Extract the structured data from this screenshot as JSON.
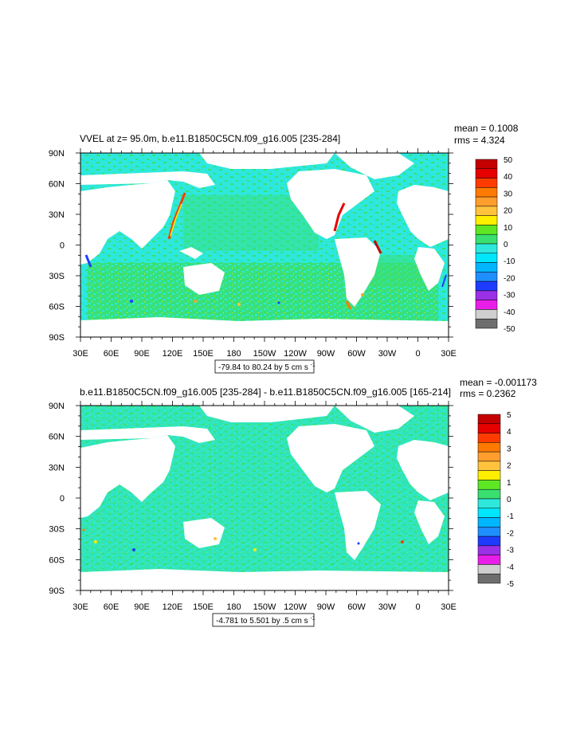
{
  "colors": {
    "ocean_base": "#2ee8dc",
    "land": "#ffffff",
    "frame": "#000000",
    "scale": [
      "#6e6e6e",
      "#cfcfcf",
      "#e81ee8",
      "#9b30e6",
      "#1e3cff",
      "#1f8fff",
      "#00b6ff",
      "#00e6ff",
      "#2ee8dc",
      "#39e06f",
      "#5ee623",
      "#ffee00",
      "#ffc33d",
      "#ff9e2d",
      "#ff7a00",
      "#ff3b00",
      "#e60000",
      "#c40000"
    ]
  },
  "chart_data": [
    {
      "type": "heatmap",
      "title": "VVEL at z=  95.0m, b.e11.B1850C5CN.f09_g16.005 [235-284]",
      "stats": [
        "mean = 0.1008",
        "rms = 4.324"
      ],
      "x_tick_labels": [
        "30E",
        "60E",
        "90E",
        "120E",
        "150E",
        "180",
        "150W",
        "120W",
        "90W",
        "60W",
        "30W",
        "0",
        "30E"
      ],
      "y_tick_labels": [
        "90N",
        "60N",
        "30N",
        "0",
        "30S",
        "60S",
        "90S"
      ],
      "x_range": [
        30,
        390
      ],
      "y_range": [
        -90,
        90
      ],
      "colorbar_labels": [
        "50",
        "40",
        "30",
        "20",
        "10",
        "0",
        "-10",
        "-20",
        "-30",
        "-40",
        "-50"
      ],
      "colorbar_levels": 18,
      "range_label": "-79.84 to 80.24 by 5 cm s",
      "range_unit_exp": "-1"
    },
    {
      "type": "heatmap",
      "title": "b.e11.B1850C5CN.f09_g16.005 [235-284] - b.e11.B1850C5CN.f09_g16.005 [165-214]",
      "stats": [
        "mean = -0.001173",
        "rms = 0.2362"
      ],
      "x_tick_labels": [
        "30E",
        "60E",
        "90E",
        "120E",
        "150E",
        "180",
        "150W",
        "120W",
        "90W",
        "60W",
        "30W",
        "0",
        "30E"
      ],
      "y_tick_labels": [
        "90N",
        "60N",
        "30N",
        "0",
        "30S",
        "60S",
        "90S"
      ],
      "x_range": [
        30,
        390
      ],
      "y_range": [
        -90,
        90
      ],
      "colorbar_labels": [
        "5",
        "4",
        "3",
        "2",
        "1",
        "0",
        "-1",
        "-2",
        "-3",
        "-4",
        "-5"
      ],
      "colorbar_levels": 18,
      "range_label": "-4.781 to 5.501 by .5 cm s",
      "range_unit_exp": "-1"
    }
  ]
}
